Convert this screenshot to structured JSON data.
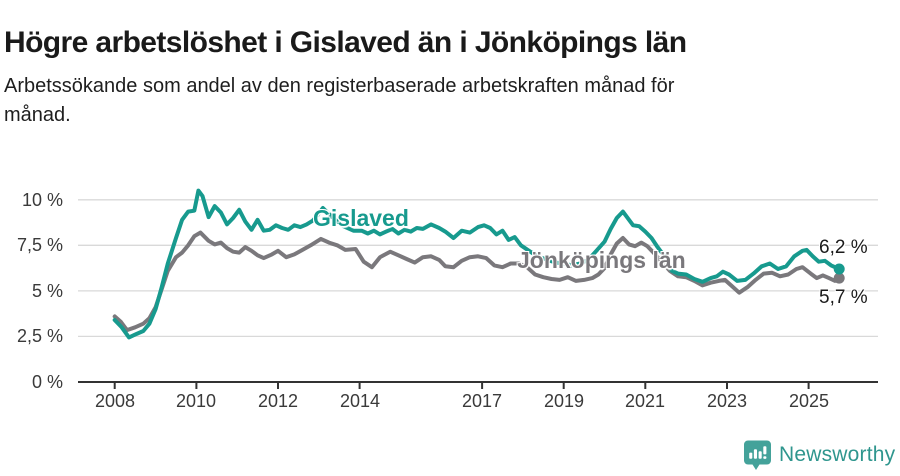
{
  "header": {
    "title": "Högre arbetslöshet i Gislaved än i Jönköpings län",
    "subtitle": "Arbetssökande som andel av den registerbaserade arbetskraften månad för månad.",
    "subtitle_lines": [
      "Arbetssökande som andel av den registerbaserade arbetskraften månad för",
      "månad."
    ]
  },
  "branding": {
    "name": "Newsworthy",
    "icon": "newsworthy-bar-chart-bubble-icon",
    "icon_color": "#44a29a",
    "text_color": "#2f968e"
  },
  "colors": {
    "background": "#ffffff",
    "grid": "#d9d9d9",
    "axis": "#333333",
    "tick_text": "#3a3a3a",
    "title_text": "#1a1a1a",
    "gislaved": "#179a8e",
    "jonkoping": "#7a787c"
  },
  "chart_data": {
    "type": "line",
    "title": "Högre arbetslöshet i Gislaved än i Jönköpings län",
    "xlabel": "",
    "ylabel": "Arbetssökande som andel av den registerbaserade arbetskraften",
    "unit": "%",
    "grid": "horizontal",
    "legend_position": "inline-labels",
    "xlim": [
      2007.1,
      2026.7
    ],
    "ylim": [
      0,
      10.7
    ],
    "x_ticks": [
      2008,
      2010,
      2012,
      2014,
      2017,
      2019,
      2021,
      2023,
      2025
    ],
    "x_tick_labels": [
      "2008",
      "2010",
      "2012",
      "2014",
      "2017",
      "2019",
      "2021",
      "2023",
      "2025"
    ],
    "y_ticks": [
      0,
      2.5,
      5,
      7.5,
      10
    ],
    "y_tick_labels": [
      "0 %",
      "2,5 %",
      "5 %",
      "7,5 %",
      "10 %"
    ],
    "series": [
      {
        "name": "Jönköpings län",
        "color": "#7a787c",
        "line_width": 4,
        "end_value": 5.7,
        "end_label": "5,7 %",
        "end_label_side": "below",
        "label_anchor": {
          "x": 2017.86,
          "y": 6.62
        },
        "points": [
          [
            2008.0,
            3.6
          ],
          [
            2008.15,
            3.3
          ],
          [
            2008.3,
            2.85
          ],
          [
            2008.5,
            3.0
          ],
          [
            2008.7,
            3.2
          ],
          [
            2008.85,
            3.5
          ],
          [
            2009.0,
            4.1
          ],
          [
            2009.15,
            5.1
          ],
          [
            2009.3,
            6.1
          ],
          [
            2009.5,
            6.85
          ],
          [
            2009.65,
            7.1
          ],
          [
            2009.8,
            7.5
          ],
          [
            2009.95,
            8.0
          ],
          [
            2010.1,
            8.2
          ],
          [
            2010.3,
            7.75
          ],
          [
            2010.45,
            7.55
          ],
          [
            2010.6,
            7.65
          ],
          [
            2010.75,
            7.35
          ],
          [
            2010.9,
            7.15
          ],
          [
            2011.05,
            7.1
          ],
          [
            2011.2,
            7.4
          ],
          [
            2011.35,
            7.2
          ],
          [
            2011.5,
            6.95
          ],
          [
            2011.65,
            6.8
          ],
          [
            2011.85,
            7.0
          ],
          [
            2012.0,
            7.2
          ],
          [
            2012.2,
            6.85
          ],
          [
            2012.4,
            7.0
          ],
          [
            2012.6,
            7.25
          ],
          [
            2012.8,
            7.5
          ],
          [
            2013.05,
            7.85
          ],
          [
            2013.25,
            7.65
          ],
          [
            2013.45,
            7.5
          ],
          [
            2013.65,
            7.25
          ],
          [
            2013.9,
            7.3
          ],
          [
            2014.1,
            6.6
          ],
          [
            2014.3,
            6.3
          ],
          [
            2014.5,
            6.85
          ],
          [
            2014.75,
            7.15
          ],
          [
            2014.95,
            6.95
          ],
          [
            2015.15,
            6.75
          ],
          [
            2015.35,
            6.55
          ],
          [
            2015.55,
            6.85
          ],
          [
            2015.75,
            6.9
          ],
          [
            2015.95,
            6.7
          ],
          [
            2016.1,
            6.35
          ],
          [
            2016.3,
            6.3
          ],
          [
            2016.5,
            6.65
          ],
          [
            2016.7,
            6.85
          ],
          [
            2016.9,
            6.9
          ],
          [
            2017.1,
            6.8
          ],
          [
            2017.3,
            6.4
          ],
          [
            2017.5,
            6.3
          ],
          [
            2017.7,
            6.5
          ],
          [
            2017.9,
            6.5
          ],
          [
            2018.1,
            6.3
          ],
          [
            2018.3,
            5.9
          ],
          [
            2018.5,
            5.75
          ],
          [
            2018.7,
            5.65
          ],
          [
            2018.9,
            5.6
          ],
          [
            2019.1,
            5.75
          ],
          [
            2019.3,
            5.55
          ],
          [
            2019.5,
            5.6
          ],
          [
            2019.7,
            5.7
          ],
          [
            2019.85,
            5.9
          ],
          [
            2020.0,
            6.25
          ],
          [
            2020.15,
            7.0
          ],
          [
            2020.3,
            7.6
          ],
          [
            2020.45,
            7.9
          ],
          [
            2020.6,
            7.55
          ],
          [
            2020.75,
            7.45
          ],
          [
            2020.9,
            7.65
          ],
          [
            2021.05,
            7.45
          ],
          [
            2021.2,
            7.1
          ],
          [
            2021.4,
            6.6
          ],
          [
            2021.6,
            6.1
          ],
          [
            2021.8,
            5.8
          ],
          [
            2022.0,
            5.75
          ],
          [
            2022.2,
            5.55
          ],
          [
            2022.4,
            5.3
          ],
          [
            2022.6,
            5.45
          ],
          [
            2022.8,
            5.55
          ],
          [
            2022.95,
            5.6
          ],
          [
            2023.1,
            5.3
          ],
          [
            2023.3,
            4.9
          ],
          [
            2023.5,
            5.2
          ],
          [
            2023.7,
            5.6
          ],
          [
            2023.9,
            5.95
          ],
          [
            2024.1,
            6.0
          ],
          [
            2024.3,
            5.8
          ],
          [
            2024.5,
            5.9
          ],
          [
            2024.7,
            6.2
          ],
          [
            2024.85,
            6.3
          ],
          [
            2025.05,
            5.95
          ],
          [
            2025.2,
            5.7
          ],
          [
            2025.35,
            5.85
          ],
          [
            2025.5,
            5.7
          ],
          [
            2025.65,
            5.55
          ],
          [
            2025.75,
            5.7
          ]
        ]
      },
      {
        "name": "Gislaved",
        "color": "#179a8e",
        "line_width": 4,
        "end_value": 6.2,
        "end_label": "6,2 %",
        "end_label_side": "above",
        "label_anchor": {
          "x": 2012.86,
          "y": 8.95
        },
        "points": [
          [
            2008.0,
            3.4
          ],
          [
            2008.17,
            3.0
          ],
          [
            2008.35,
            2.45
          ],
          [
            2008.5,
            2.6
          ],
          [
            2008.7,
            2.8
          ],
          [
            2008.85,
            3.2
          ],
          [
            2009.0,
            4.0
          ],
          [
            2009.15,
            5.2
          ],
          [
            2009.3,
            6.5
          ],
          [
            2009.5,
            7.9
          ],
          [
            2009.65,
            8.9
          ],
          [
            2009.8,
            9.35
          ],
          [
            2009.95,
            9.4
          ],
          [
            2010.05,
            10.5
          ],
          [
            2010.15,
            10.2
          ],
          [
            2010.3,
            9.05
          ],
          [
            2010.45,
            9.65
          ],
          [
            2010.6,
            9.3
          ],
          [
            2010.75,
            8.65
          ],
          [
            2010.9,
            9.0
          ],
          [
            2011.05,
            9.45
          ],
          [
            2011.2,
            8.8
          ],
          [
            2011.35,
            8.35
          ],
          [
            2011.5,
            8.9
          ],
          [
            2011.65,
            8.3
          ],
          [
            2011.8,
            8.35
          ],
          [
            2011.95,
            8.6
          ],
          [
            2012.1,
            8.45
          ],
          [
            2012.25,
            8.35
          ],
          [
            2012.4,
            8.6
          ],
          [
            2012.55,
            8.5
          ],
          [
            2012.7,
            8.65
          ],
          [
            2012.85,
            8.85
          ],
          [
            2012.95,
            9.1
          ],
          [
            2013.1,
            9.55
          ],
          [
            2013.35,
            9.0
          ],
          [
            2013.6,
            8.55
          ],
          [
            2013.85,
            8.3
          ],
          [
            2014.05,
            8.3
          ],
          [
            2014.2,
            8.15
          ],
          [
            2014.35,
            8.3
          ],
          [
            2014.5,
            8.1
          ],
          [
            2014.65,
            8.25
          ],
          [
            2014.8,
            8.4
          ],
          [
            2014.95,
            8.15
          ],
          [
            2015.1,
            8.35
          ],
          [
            2015.25,
            8.25
          ],
          [
            2015.4,
            8.45
          ],
          [
            2015.55,
            8.4
          ],
          [
            2015.75,
            8.65
          ],
          [
            2015.95,
            8.45
          ],
          [
            2016.1,
            8.25
          ],
          [
            2016.3,
            7.9
          ],
          [
            2016.5,
            8.3
          ],
          [
            2016.7,
            8.2
          ],
          [
            2016.9,
            8.5
          ],
          [
            2017.05,
            8.6
          ],
          [
            2017.2,
            8.45
          ],
          [
            2017.35,
            8.1
          ],
          [
            2017.5,
            8.3
          ],
          [
            2017.65,
            7.8
          ],
          [
            2017.8,
            7.95
          ],
          [
            2017.95,
            7.5
          ],
          [
            2018.15,
            7.2
          ],
          [
            2018.35,
            6.9
          ],
          [
            2018.6,
            6.7
          ],
          [
            2018.8,
            6.55
          ],
          [
            2019.0,
            6.5
          ],
          [
            2019.2,
            6.4
          ],
          [
            2019.4,
            6.5
          ],
          [
            2019.6,
            6.7
          ],
          [
            2019.8,
            7.2
          ],
          [
            2020.0,
            7.7
          ],
          [
            2020.15,
            8.4
          ],
          [
            2020.3,
            9.0
          ],
          [
            2020.45,
            9.35
          ],
          [
            2020.6,
            8.9
          ],
          [
            2020.7,
            8.6
          ],
          [
            2020.85,
            8.55
          ],
          [
            2021.0,
            8.25
          ],
          [
            2021.15,
            7.9
          ],
          [
            2021.3,
            7.4
          ],
          [
            2021.5,
            6.8
          ],
          [
            2021.65,
            6.1
          ],
          [
            2021.8,
            5.95
          ],
          [
            2022.0,
            5.9
          ],
          [
            2022.2,
            5.65
          ],
          [
            2022.4,
            5.5
          ],
          [
            2022.6,
            5.7
          ],
          [
            2022.75,
            5.8
          ],
          [
            2022.9,
            6.05
          ],
          [
            2023.05,
            5.9
          ],
          [
            2023.25,
            5.55
          ],
          [
            2023.45,
            5.6
          ],
          [
            2023.65,
            5.95
          ],
          [
            2023.85,
            6.35
          ],
          [
            2024.05,
            6.5
          ],
          [
            2024.25,
            6.2
          ],
          [
            2024.45,
            6.35
          ],
          [
            2024.65,
            6.9
          ],
          [
            2024.85,
            7.2
          ],
          [
            2024.95,
            7.25
          ],
          [
            2025.1,
            6.9
          ],
          [
            2025.25,
            6.6
          ],
          [
            2025.4,
            6.65
          ],
          [
            2025.55,
            6.4
          ],
          [
            2025.75,
            6.2
          ]
        ]
      }
    ]
  }
}
